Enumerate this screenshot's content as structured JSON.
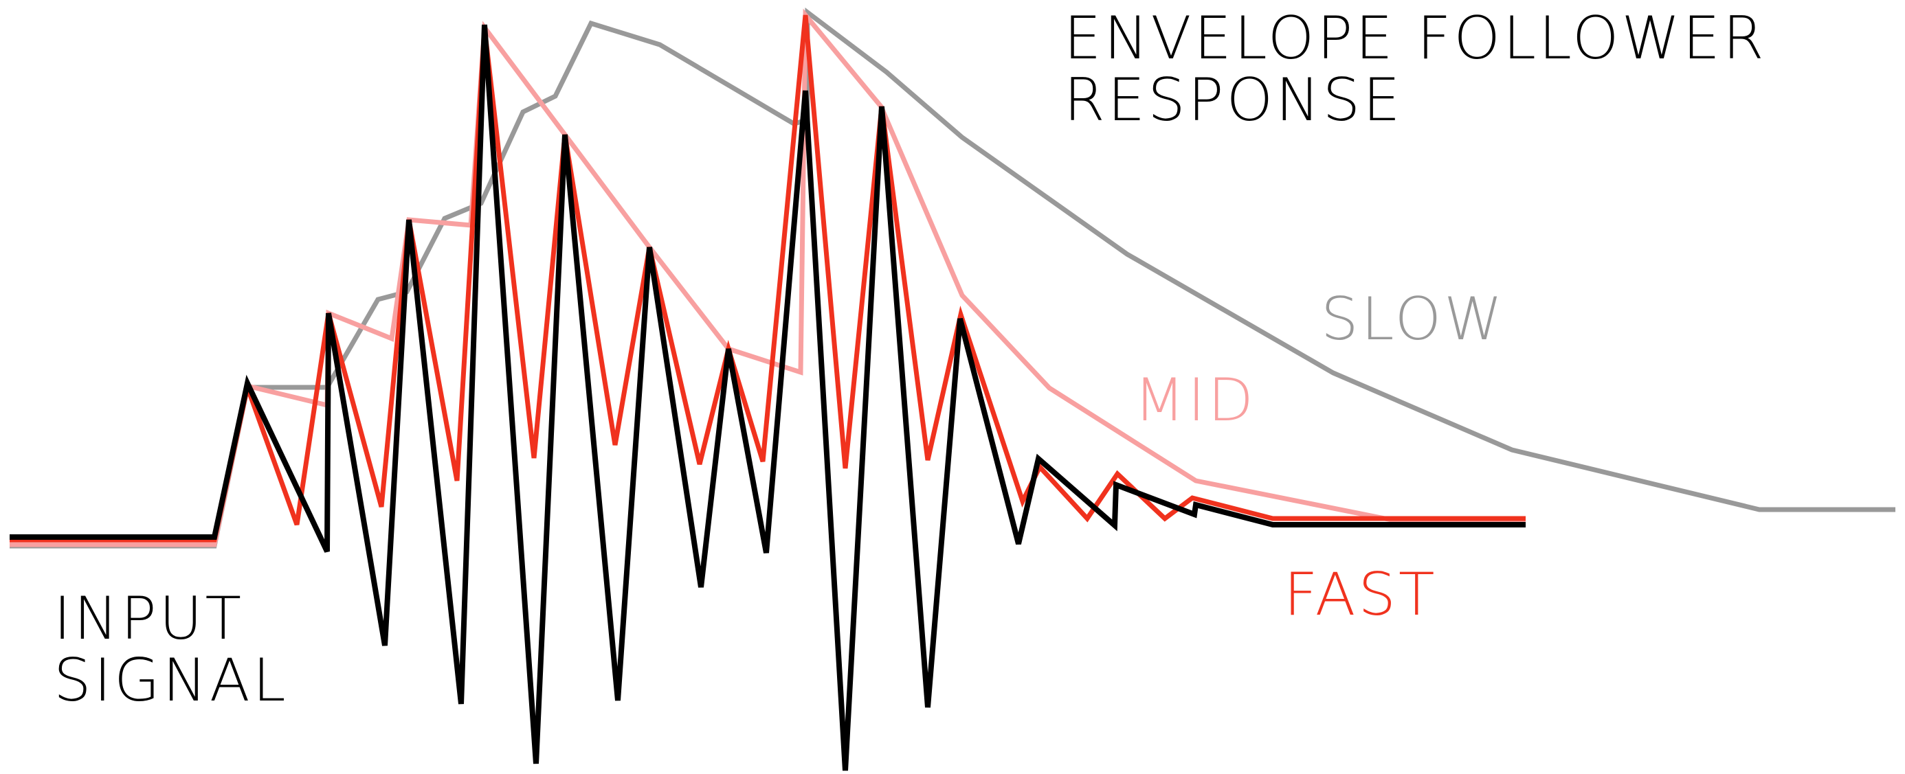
{
  "title": {
    "line1": "ENVELOPE FOLLOWER",
    "line2": "RESPONSE"
  },
  "input_label": {
    "line1": "INPUT",
    "line2": "SIGNAL"
  },
  "colors": {
    "input": "#000000",
    "fast": "#f0321e",
    "mid": "#f8a0a0",
    "slow": "#999999",
    "background": "#ffffff"
  },
  "traces": [
    {
      "key": "slow",
      "label": "SLOW"
    },
    {
      "key": "mid",
      "label": "MID"
    },
    {
      "key": "fast",
      "label": "FAST"
    },
    {
      "key": "input",
      "label": ""
    }
  ]
}
